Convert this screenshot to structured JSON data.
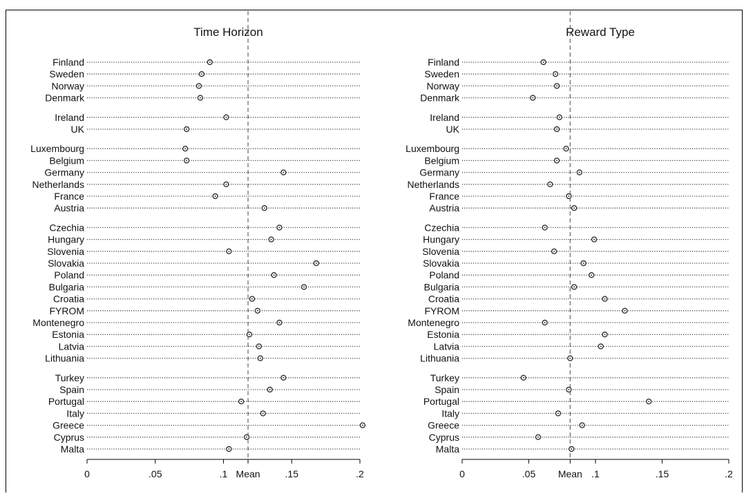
{
  "chart_data": [
    {
      "type": "scatter",
      "title": "Time Horizon",
      "xlim": [
        0,
        0.2
      ],
      "xticks": [
        {
          "value": 0,
          "label": "0"
        },
        {
          "value": 0.05,
          "label": ".05"
        },
        {
          "value": 0.1,
          "label": ".1"
        },
        {
          "value": 0.15,
          "label": ".15"
        },
        {
          "value": 0.2,
          "label": ".2"
        }
      ],
      "mean": 0.118,
      "mean_label": "Mean",
      "grid": true,
      "groups": [
        [
          {
            "country": "Finland",
            "value": 0.09
          },
          {
            "country": "Sweden",
            "value": 0.084
          },
          {
            "country": "Norway",
            "value": 0.082
          },
          {
            "country": "Denmark",
            "value": 0.083
          }
        ],
        [
          {
            "country": "Ireland",
            "value": 0.102
          },
          {
            "country": "UK",
            "value": 0.073
          }
        ],
        [
          {
            "country": "Luxembourg",
            "value": 0.072
          },
          {
            "country": "Belgium",
            "value": 0.073
          },
          {
            "country": "Germany",
            "value": 0.144
          },
          {
            "country": "Netherlands",
            "value": 0.102
          },
          {
            "country": "France",
            "value": 0.094
          },
          {
            "country": "Austria",
            "value": 0.13
          }
        ],
        [
          {
            "country": "Czechia",
            "value": 0.141
          },
          {
            "country": "Hungary",
            "value": 0.135
          },
          {
            "country": "Slovenia",
            "value": 0.104
          },
          {
            "country": "Slovakia",
            "value": 0.168
          },
          {
            "country": "Poland",
            "value": 0.137
          },
          {
            "country": "Bulgaria",
            "value": 0.159
          },
          {
            "country": "Croatia",
            "value": 0.121
          },
          {
            "country": "FYROM",
            "value": 0.125
          },
          {
            "country": "Montenegro",
            "value": 0.141
          },
          {
            "country": "Estonia",
            "value": 0.119
          },
          {
            "country": "Latvia",
            "value": 0.126
          },
          {
            "country": "Lithuania",
            "value": 0.127
          }
        ],
        [
          {
            "country": "Turkey",
            "value": 0.144
          },
          {
            "country": "Spain",
            "value": 0.134
          },
          {
            "country": "Portugal",
            "value": 0.113
          },
          {
            "country": "Italy",
            "value": 0.129
          },
          {
            "country": "Greece",
            "value": 0.202
          },
          {
            "country": "Cyprus",
            "value": 0.117
          },
          {
            "country": "Malta",
            "value": 0.104
          }
        ]
      ]
    },
    {
      "type": "scatter",
      "title": "Reward Type",
      "xlim": [
        0,
        0.2
      ],
      "xticks": [
        {
          "value": 0,
          "label": "0"
        },
        {
          "value": 0.05,
          "label": ".05"
        },
        {
          "value": 0.1,
          "label": ".1"
        },
        {
          "value": 0.15,
          "label": ".15"
        },
        {
          "value": 0.2,
          "label": ".2"
        }
      ],
      "mean": 0.081,
      "mean_label": "Mean",
      "grid": true,
      "groups": [
        [
          {
            "country": "Finland",
            "value": 0.061
          },
          {
            "country": "Sweden",
            "value": 0.07
          },
          {
            "country": "Norway",
            "value": 0.071
          },
          {
            "country": "Denmark",
            "value": 0.053
          }
        ],
        [
          {
            "country": "Ireland",
            "value": 0.073
          },
          {
            "country": "UK",
            "value": 0.071
          }
        ],
        [
          {
            "country": "Luxembourg",
            "value": 0.078
          },
          {
            "country": "Belgium",
            "value": 0.071
          },
          {
            "country": "Germany",
            "value": 0.088
          },
          {
            "country": "Netherlands",
            "value": 0.066
          },
          {
            "country": "France",
            "value": 0.08
          },
          {
            "country": "Austria",
            "value": 0.084
          }
        ],
        [
          {
            "country": "Czechia",
            "value": 0.062
          },
          {
            "country": "Hungary",
            "value": 0.099
          },
          {
            "country": "Slovenia",
            "value": 0.069
          },
          {
            "country": "Slovakia",
            "value": 0.091
          },
          {
            "country": "Poland",
            "value": 0.097
          },
          {
            "country": "Bulgaria",
            "value": 0.084
          },
          {
            "country": "Croatia",
            "value": 0.107
          },
          {
            "country": "FYROM",
            "value": 0.122
          },
          {
            "country": "Montenegro",
            "value": 0.062
          },
          {
            "country": "Estonia",
            "value": 0.107
          },
          {
            "country": "Latvia",
            "value": 0.104
          },
          {
            "country": "Lithuania",
            "value": 0.081
          }
        ],
        [
          {
            "country": "Turkey",
            "value": 0.046
          },
          {
            "country": "Spain",
            "value": 0.08
          },
          {
            "country": "Portugal",
            "value": 0.14
          },
          {
            "country": "Italy",
            "value": 0.072
          },
          {
            "country": "Greece",
            "value": 0.09
          },
          {
            "country": "Cyprus",
            "value": 0.057
          },
          {
            "country": "Malta",
            "value": 0.082
          }
        ]
      ]
    }
  ]
}
